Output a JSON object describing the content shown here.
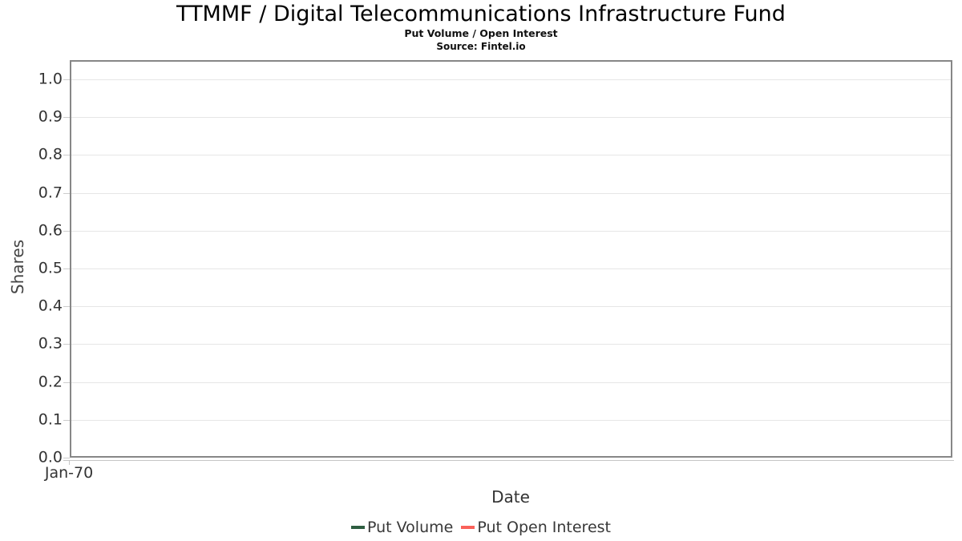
{
  "header": {
    "title": "TTMMF / Digital Telecommunications Infrastructure Fund",
    "subtitle": "Put Volume / Open Interest",
    "source": "Source: Fintel.io"
  },
  "chart_data": {
    "type": "line",
    "title": "TTMMF / Digital Telecommunications Infrastructure Fund",
    "subtitle": "Put Volume / Open Interest",
    "source": "Source: Fintel.io",
    "xlabel": "Date",
    "ylabel": "Shares",
    "x_tick_labels": [
      "Jan-70"
    ],
    "y_tick_labels": [
      "1.0",
      "0.9",
      "0.8",
      "0.7",
      "0.6",
      "0.5",
      "0.4",
      "0.3",
      "0.2",
      "0.1",
      "0.0"
    ],
    "ylim": [
      0.0,
      1.05
    ],
    "grid": true,
    "legend_position": "bottom-center",
    "series": [
      {
        "name": "Put Volume",
        "color": "#2E5E41",
        "x": [],
        "values": []
      },
      {
        "name": "Put Open Interest",
        "color": "#FA615A",
        "x": [],
        "values": []
      }
    ]
  }
}
